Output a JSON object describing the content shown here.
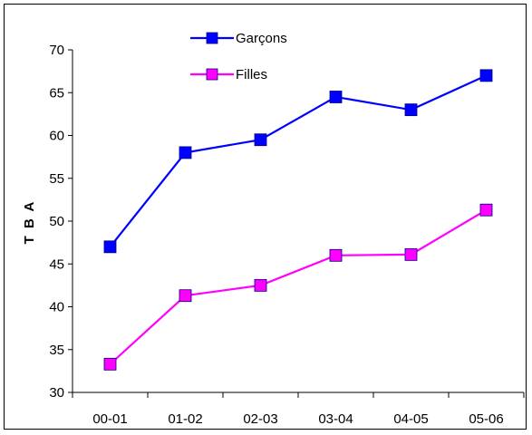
{
  "chart_data": {
    "type": "line",
    "title": "",
    "xlabel": "",
    "ylabel": "T B A",
    "categories": [
      "00-01",
      "01-02",
      "02-03",
      "03-04",
      "04-05",
      "05-06"
    ],
    "ylim": [
      30,
      70
    ],
    "yticks": [
      30,
      35,
      40,
      45,
      50,
      55,
      60,
      65,
      70
    ],
    "grid": false,
    "legend_position": "top",
    "series": [
      {
        "name": "Garçons",
        "color": "#0000ff",
        "marker": "square",
        "values": [
          47.0,
          58.0,
          59.5,
          64.5,
          63.0,
          67.0
        ]
      },
      {
        "name": "Filles",
        "color": "#ff00ff",
        "marker": "square",
        "values": [
          33.3,
          41.3,
          42.5,
          46.0,
          46.1,
          51.3
        ]
      }
    ]
  }
}
